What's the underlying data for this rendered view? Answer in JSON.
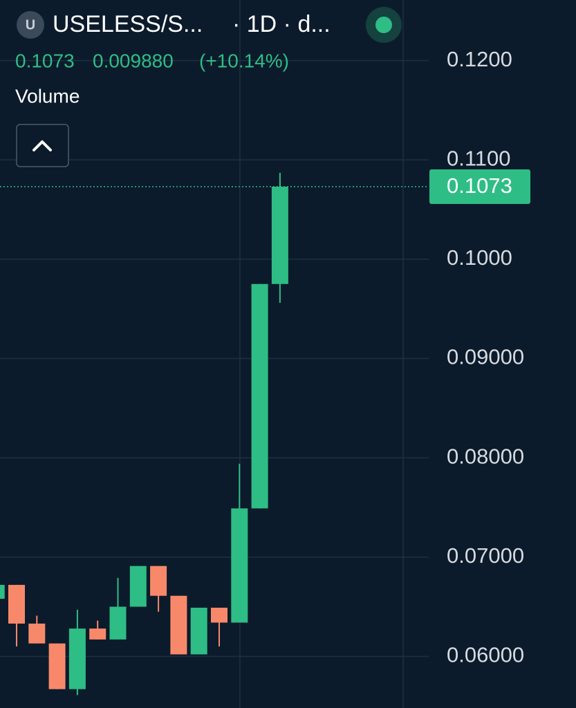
{
  "header": {
    "icon_letter": "U",
    "symbol": "USELESS/S...",
    "interval": "· 1D · d...",
    "price": "0.1073",
    "change": "0.009880",
    "change_pct": "(+10.14%)",
    "study": "Volume"
  },
  "chart_data": {
    "type": "candlestick",
    "categories": [
      null,
      null,
      null,
      null,
      null,
      null,
      null,
      null,
      null,
      null,
      null,
      null,
      null,
      null,
      null
    ],
    "open": [
      0.0658,
      0.0672,
      0.0633,
      0.0613,
      0.0567,
      0.0628,
      0.0617,
      0.065,
      0.0691,
      0.0661,
      0.0602,
      0.0649,
      0.0634,
      0.0749,
      0.0975
    ],
    "high": [
      0.0673,
      0.0672,
      0.0641,
      0.0613,
      0.0647,
      0.0636,
      0.0679,
      0.0691,
      0.0691,
      0.0661,
      0.0649,
      0.0649,
      0.0794,
      0.0975,
      0.1087
    ],
    "low": [
      0.0657,
      0.061,
      0.0613,
      0.0567,
      0.0561,
      0.0617,
      0.0617,
      0.065,
      0.0645,
      0.0602,
      0.0602,
      0.061,
      0.0634,
      0.0749,
      0.0956
    ],
    "close": [
      0.0672,
      0.0633,
      0.0613,
      0.0567,
      0.0628,
      0.0617,
      0.065,
      0.0691,
      0.0661,
      0.0602,
      0.0649,
      0.0634,
      0.0749,
      0.0975,
      0.1073
    ],
    "up_color": "#2ebd85",
    "down_color": "#f7896a",
    "last_price": 0.1073,
    "ylim": [
      0.0548,
      0.1261
    ],
    "yticks": [
      {
        "value": 0.06,
        "label": "0.06000"
      },
      {
        "value": 0.07,
        "label": "0.07000"
      },
      {
        "value": 0.08,
        "label": "0.08000"
      },
      {
        "value": 0.09,
        "label": "0.09000"
      },
      {
        "value": 0.1,
        "label": "0.1000"
      },
      {
        "value": 0.11,
        "label": "0.1100"
      },
      {
        "value": 0.12,
        "label": "0.1200"
      }
    ],
    "grid": true
  }
}
